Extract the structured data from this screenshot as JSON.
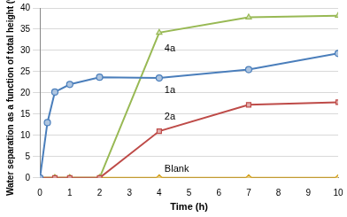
{
  "chart_data": {
    "type": "line",
    "x_label": "Time (h)",
    "y_label": "Water separation as a function of total height (%)",
    "xlim": [
      0,
      10
    ],
    "xticks": [
      0,
      1,
      2,
      3,
      4,
      5,
      6,
      7,
      8,
      9,
      10
    ],
    "ylim": [
      0,
      40
    ],
    "yticks": [
      0,
      5,
      10,
      15,
      20,
      25,
      30,
      35,
      40
    ],
    "grid": true,
    "series": [
      {
        "name": "1a",
        "color": "#4a7ebb",
        "marker": "circle",
        "x": [
          0,
          0.25,
          0.5,
          1,
          2,
          4,
          7,
          10
        ],
        "values": [
          0,
          13,
          20.2,
          22,
          23.7,
          23.5,
          25.5,
          29.3
        ]
      },
      {
        "name": "2a",
        "color": "#be4b48",
        "marker": "square",
        "x": [
          0,
          0.5,
          1,
          2,
          4,
          7,
          10
        ],
        "values": [
          0,
          0,
          0,
          0,
          11,
          17.2,
          17.8
        ]
      },
      {
        "name": "4a",
        "color": "#98b954",
        "marker": "triangle",
        "x": [
          0,
          0.5,
          1,
          2,
          4,
          7,
          10
        ],
        "values": [
          0,
          0,
          0,
          0,
          34.2,
          37.8,
          38.2
        ]
      },
      {
        "name": "Blank",
        "color": "#d4a017",
        "marker": "diamond",
        "x": [
          0,
          0.5,
          1,
          2,
          4,
          7,
          10
        ],
        "values": [
          0,
          0,
          0,
          0,
          0,
          0,
          0
        ]
      }
    ]
  }
}
